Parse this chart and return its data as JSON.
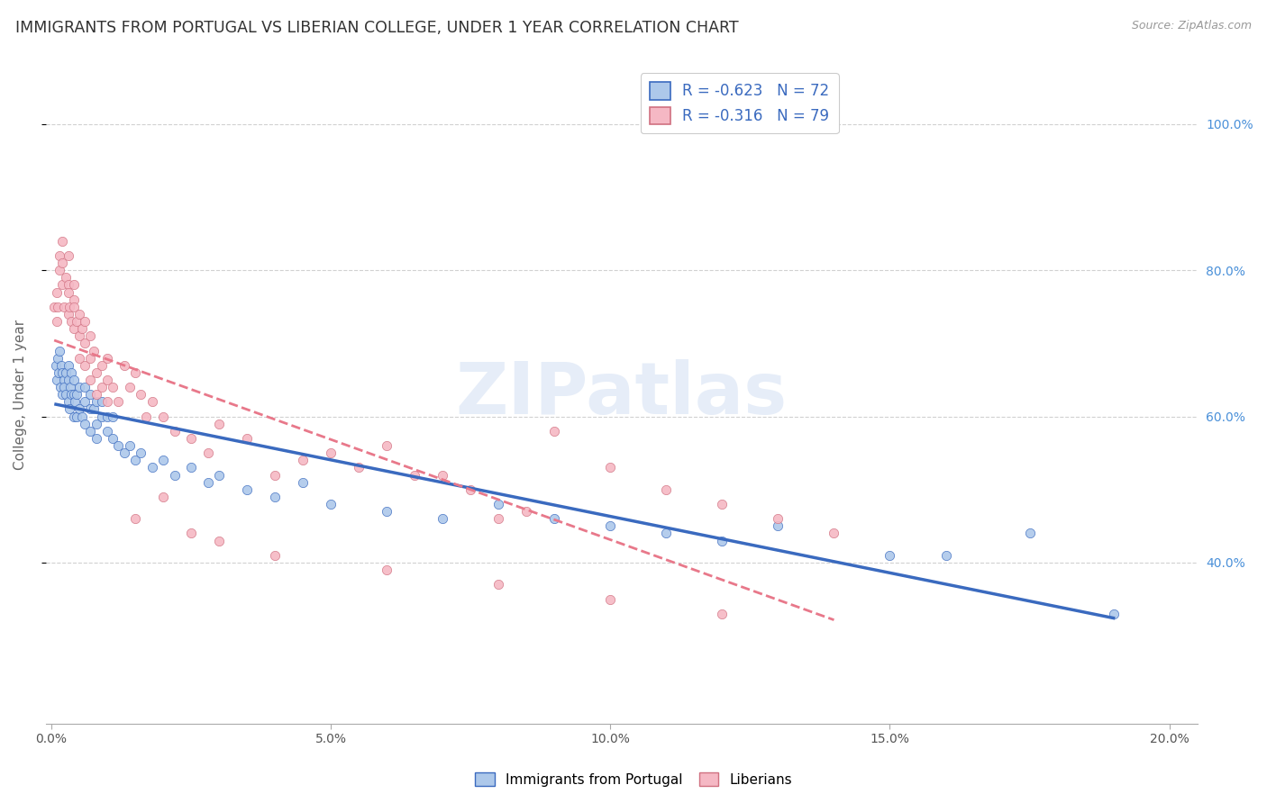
{
  "title": "IMMIGRANTS FROM PORTUGAL VS LIBERIAN COLLEGE, UNDER 1 YEAR CORRELATION CHART",
  "source": "Source: ZipAtlas.com",
  "ylabel": "College, Under 1 year",
  "xlim": [
    -0.001,
    0.205
  ],
  "ylim": [
    0.18,
    1.08
  ],
  "xtick_labels": [
    "0.0%",
    "5.0%",
    "10.0%",
    "15.0%",
    "20.0%"
  ],
  "xtick_positions": [
    0.0,
    0.05,
    0.1,
    0.15,
    0.2
  ],
  "ytick_labels": [
    "40.0%",
    "60.0%",
    "80.0%",
    "100.0%"
  ],
  "ytick_positions": [
    0.4,
    0.6,
    0.8,
    1.0
  ],
  "legend_r1": "-0.623",
  "legend_n1": "72",
  "legend_r2": "-0.316",
  "legend_n2": "79",
  "color_portugal": "#adc8ea",
  "color_liberia": "#f5b8c4",
  "line_color_portugal": "#3a6abf",
  "line_color_liberia": "#e8788a",
  "background_color": "#ffffff",
  "grid_color": "#cccccc",
  "watermark": "ZIPatlas",
  "portugal_x": [
    0.0008,
    0.001,
    0.0012,
    0.0013,
    0.0015,
    0.0016,
    0.0017,
    0.002,
    0.002,
    0.0022,
    0.0023,
    0.0025,
    0.0025,
    0.003,
    0.003,
    0.003,
    0.0032,
    0.0033,
    0.0035,
    0.0035,
    0.004,
    0.004,
    0.004,
    0.0042,
    0.0045,
    0.0045,
    0.005,
    0.005,
    0.0055,
    0.006,
    0.006,
    0.006,
    0.007,
    0.007,
    0.007,
    0.0075,
    0.008,
    0.008,
    0.008,
    0.009,
    0.009,
    0.01,
    0.01,
    0.011,
    0.011,
    0.012,
    0.013,
    0.014,
    0.015,
    0.016,
    0.018,
    0.02,
    0.022,
    0.025,
    0.028,
    0.03,
    0.035,
    0.04,
    0.045,
    0.05,
    0.06,
    0.07,
    0.08,
    0.09,
    0.1,
    0.11,
    0.12,
    0.13,
    0.15,
    0.16,
    0.175,
    0.19
  ],
  "portugal_y": [
    0.67,
    0.65,
    0.68,
    0.66,
    0.69,
    0.64,
    0.67,
    0.63,
    0.66,
    0.65,
    0.64,
    0.63,
    0.66,
    0.62,
    0.65,
    0.67,
    0.61,
    0.64,
    0.63,
    0.66,
    0.6,
    0.63,
    0.65,
    0.62,
    0.6,
    0.63,
    0.61,
    0.64,
    0.6,
    0.62,
    0.64,
    0.59,
    0.61,
    0.63,
    0.58,
    0.61,
    0.59,
    0.62,
    0.57,
    0.6,
    0.62,
    0.58,
    0.6,
    0.57,
    0.6,
    0.56,
    0.55,
    0.56,
    0.54,
    0.55,
    0.53,
    0.54,
    0.52,
    0.53,
    0.51,
    0.52,
    0.5,
    0.49,
    0.51,
    0.48,
    0.47,
    0.46,
    0.48,
    0.46,
    0.45,
    0.44,
    0.43,
    0.45,
    0.41,
    0.41,
    0.44,
    0.33
  ],
  "liberia_x": [
    0.0005,
    0.001,
    0.001,
    0.0012,
    0.0015,
    0.0015,
    0.002,
    0.002,
    0.002,
    0.0022,
    0.0025,
    0.003,
    0.003,
    0.003,
    0.003,
    0.0032,
    0.0035,
    0.004,
    0.004,
    0.004,
    0.004,
    0.0045,
    0.005,
    0.005,
    0.005,
    0.0055,
    0.006,
    0.006,
    0.006,
    0.007,
    0.007,
    0.007,
    0.0075,
    0.008,
    0.008,
    0.009,
    0.009,
    0.01,
    0.01,
    0.01,
    0.011,
    0.012,
    0.013,
    0.014,
    0.015,
    0.016,
    0.017,
    0.018,
    0.02,
    0.022,
    0.025,
    0.028,
    0.03,
    0.035,
    0.04,
    0.045,
    0.05,
    0.055,
    0.06,
    0.065,
    0.07,
    0.075,
    0.08,
    0.085,
    0.09,
    0.1,
    0.11,
    0.12,
    0.13,
    0.14,
    0.015,
    0.02,
    0.025,
    0.03,
    0.04,
    0.06,
    0.08,
    0.1,
    0.12
  ],
  "liberia_y": [
    0.75,
    0.73,
    0.77,
    0.75,
    0.8,
    0.82,
    0.78,
    0.81,
    0.84,
    0.75,
    0.79,
    0.82,
    0.78,
    0.74,
    0.77,
    0.75,
    0.73,
    0.76,
    0.72,
    0.75,
    0.78,
    0.73,
    0.74,
    0.71,
    0.68,
    0.72,
    0.7,
    0.73,
    0.67,
    0.71,
    0.68,
    0.65,
    0.69,
    0.66,
    0.63,
    0.67,
    0.64,
    0.65,
    0.62,
    0.68,
    0.64,
    0.62,
    0.67,
    0.64,
    0.66,
    0.63,
    0.6,
    0.62,
    0.6,
    0.58,
    0.57,
    0.55,
    0.59,
    0.57,
    0.52,
    0.54,
    0.55,
    0.53,
    0.56,
    0.52,
    0.52,
    0.5,
    0.46,
    0.47,
    0.58,
    0.53,
    0.5,
    0.48,
    0.46,
    0.44,
    0.46,
    0.49,
    0.44,
    0.43,
    0.41,
    0.39,
    0.37,
    0.35,
    0.33
  ]
}
